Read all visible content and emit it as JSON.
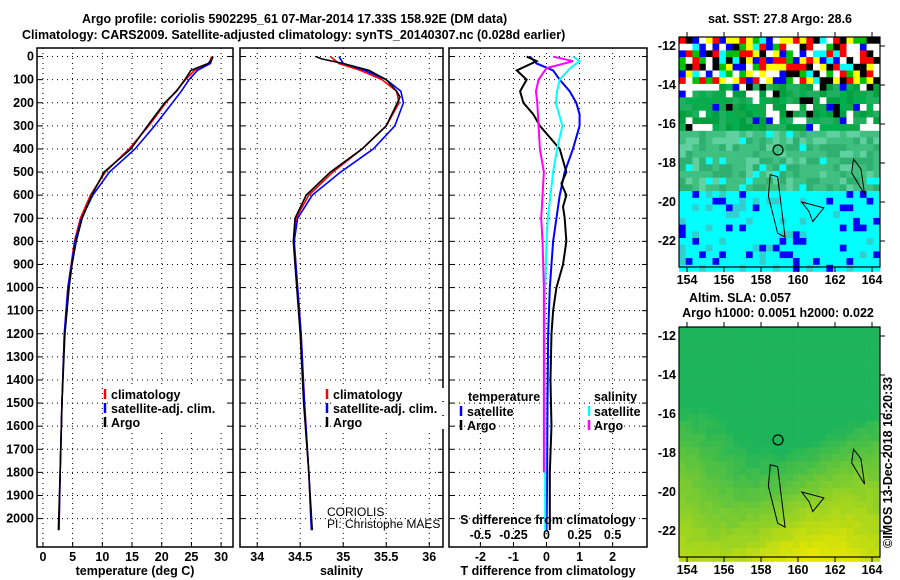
{
  "title": {
    "line1": "Argo profile: coriolis 5902295_61 07-Mar-2014 17.33S 158.92E (DM data)",
    "line2": "Climatology: CARS2009. Satellite-adjusted climatology: synTS_20140307.nc (0.028d earlier)"
  },
  "colors": {
    "climatology": "#ff0000",
    "satellite": "#0000ff",
    "argo": "#000000",
    "sal_satellite": "#00ffff",
    "sal_argo": "#ff00ff"
  },
  "chart_data": [
    {
      "type": "line",
      "id": "temperature",
      "xlabel": "temperature (deg C)",
      "ylabel": "depth",
      "xticks": [
        0,
        5,
        10,
        15,
        20,
        25,
        30
      ],
      "yticks": [
        0,
        100,
        200,
        300,
        400,
        500,
        600,
        700,
        800,
        900,
        1000,
        1100,
        1200,
        1300,
        1400,
        1500,
        1600,
        1700,
        1800,
        1900,
        2000
      ],
      "xlim": [
        -1,
        32
      ],
      "ylim": [
        2123,
        -37
      ],
      "grid": true,
      "legend": {
        "placement": "lower-center",
        "entries": [
          "climatology",
          "satellite-adj. clim.",
          "Argo"
        ]
      },
      "series": [
        {
          "name": "climatology",
          "color": "#ff0000",
          "depth": [
            0,
            30,
            60,
            100,
            150,
            200,
            300,
            400,
            500,
            600,
            700,
            800,
            1000,
            1200,
            1500,
            1800,
            2050
          ],
          "values": [
            28.4,
            28.0,
            25.5,
            24.0,
            22.4,
            20.7,
            17.8,
            14.5,
            10.5,
            8.0,
            6.3,
            5.3,
            4.2,
            3.6,
            3.2,
            2.9,
            2.7
          ]
        },
        {
          "name": "satellite-adj. clim.",
          "color": "#0000ff",
          "depth": [
            0,
            30,
            60,
            100,
            150,
            200,
            300,
            400,
            500,
            600,
            700,
            800,
            1000,
            1200,
            1500,
            1800,
            2050
          ],
          "values": [
            28.6,
            28.2,
            26.0,
            24.6,
            23.3,
            21.8,
            18.8,
            15.5,
            11.2,
            8.4,
            6.5,
            5.4,
            4.2,
            3.6,
            3.2,
            2.9,
            2.7
          ]
        },
        {
          "name": "Argo",
          "color": "#000000",
          "depth": [
            0,
            10,
            30,
            60,
            100,
            150,
            200,
            300,
            400,
            500,
            600,
            700,
            800,
            900,
            1000,
            1200,
            1500,
            1800,
            2050
          ],
          "values": [
            28.6,
            28.5,
            27.8,
            24.9,
            23.9,
            22.5,
            20.5,
            17.6,
            14.8,
            10.3,
            8.2,
            6.6,
            5.6,
            4.9,
            4.4,
            3.7,
            3.2,
            2.9,
            2.6
          ]
        }
      ]
    },
    {
      "type": "line",
      "id": "salinity",
      "xlabel": "salinity",
      "xticks": [
        34,
        34.5,
        35,
        35.5,
        36
      ],
      "xlim": [
        33.8,
        36.16
      ],
      "ylim": [
        2123,
        -37
      ],
      "grid": true,
      "legend": {
        "placement": "lower-center",
        "entries": [
          "climatology",
          "satellite-adj. clim.",
          "Argo"
        ]
      },
      "annotation": [
        "CORIOLIS",
        "PI: Christophe MAES"
      ],
      "series": [
        {
          "name": "climatology",
          "color": "#ff0000",
          "depth": [
            0,
            30,
            60,
            100,
            150,
            200,
            300,
            400,
            500,
            600,
            700,
            800,
            1000,
            1200,
            1500,
            1800,
            2050
          ],
          "values": [
            34.85,
            34.95,
            35.2,
            35.45,
            35.62,
            35.65,
            35.5,
            35.22,
            34.88,
            34.6,
            34.45,
            34.43,
            34.47,
            34.51,
            34.55,
            34.6,
            34.63
          ]
        },
        {
          "name": "satellite-adj. clim.",
          "color": "#0000ff",
          "depth": [
            0,
            30,
            60,
            100,
            150,
            200,
            300,
            400,
            500,
            600,
            700,
            800,
            1000,
            1200,
            1500,
            1800,
            2050
          ],
          "values": [
            34.95,
            35.0,
            35.25,
            35.5,
            35.67,
            35.7,
            35.6,
            35.35,
            34.97,
            34.64,
            34.47,
            34.43,
            34.47,
            34.51,
            34.55,
            34.6,
            34.63
          ]
        },
        {
          "name": "Argo",
          "color": "#000000",
          "depth": [
            0,
            10,
            30,
            60,
            100,
            150,
            175,
            200,
            300,
            400,
            500,
            600,
            700,
            800,
            1000,
            1200,
            1500,
            1800,
            2050
          ],
          "values": [
            34.68,
            34.75,
            35.0,
            35.3,
            35.5,
            35.62,
            35.66,
            35.63,
            35.5,
            35.22,
            34.85,
            34.57,
            34.44,
            34.42,
            34.46,
            34.5,
            34.54,
            34.6,
            34.64
          ]
        }
      ]
    },
    {
      "type": "line",
      "id": "difference",
      "xlabel": "T difference from climatology",
      "xlabel2": "S difference from climatology",
      "xticks": [
        -2,
        -1,
        0,
        1,
        2
      ],
      "xticks2": [
        "-0.5",
        "-0.25",
        "0",
        "0.25",
        "0.5"
      ],
      "xticks2_values": [
        -0.5,
        -0.25,
        0,
        0.25,
        0.5
      ],
      "xlim": [
        -2.95,
        3.04
      ],
      "ylim": [
        2123,
        -37
      ],
      "s_scale": 4,
      "grid": true,
      "legend": {
        "placement": "lower-center",
        "temperature_title": "temperature",
        "salinity_title": "salinity",
        "entries": [
          "satellite",
          "Argo"
        ]
      },
      "series": [
        {
          "name": "T satellite",
          "color": "#0000ff",
          "kind": "T",
          "depth": [
            0,
            30,
            60,
            100,
            150,
            200,
            250,
            300,
            400,
            500,
            600,
            700,
            800,
            900,
            1000,
            1200,
            1500,
            1800,
            2050
          ],
          "values": [
            -0.5,
            -0.3,
            0.2,
            0.4,
            0.7,
            0.9,
            1.0,
            1.0,
            0.8,
            0.55,
            0.4,
            0.3,
            0.2,
            0.15,
            0.1,
            0.05,
            0.03,
            0.02,
            0.0
          ]
        },
        {
          "name": "T Argo",
          "color": "#000000",
          "kind": "T",
          "depth": [
            0,
            20,
            60,
            100,
            150,
            200,
            250,
            300,
            350,
            400,
            450,
            500,
            550,
            600,
            650,
            700,
            800,
            900,
            1000,
            1100,
            1200,
            1400,
            1600,
            1800,
            2050
          ],
          "values": [
            -0.6,
            -0.3,
            -0.9,
            -0.6,
            -0.8,
            -0.7,
            -0.4,
            -0.2,
            0.1,
            0.4,
            0.5,
            0.6,
            0.45,
            0.6,
            0.5,
            0.55,
            0.6,
            0.5,
            0.3,
            0.2,
            0.15,
            0.12,
            0.15,
            0.1,
            0.1
          ]
        },
        {
          "name": "S satellite",
          "color": "#00ffff",
          "kind": "S",
          "depth": [
            0,
            20,
            50,
            100,
            150,
            200,
            300,
            400,
            500,
            600,
            700,
            800,
            1000,
            1500,
            2050
          ],
          "values": [
            0.2,
            0.25,
            0.18,
            0.1,
            0.08,
            0.07,
            0.12,
            0.08,
            0.05,
            0.03,
            0.01,
            0.0,
            -0.01,
            -0.01,
            -0.01
          ]
        },
        {
          "name": "S Argo",
          "color": "#ff00ff",
          "kind": "S",
          "depth": [
            0,
            20,
            50,
            100,
            150,
            200,
            300,
            400,
            500,
            600,
            700,
            800,
            1000,
            1400,
            1800
          ],
          "values": [
            0.05,
            0.2,
            0.0,
            -0.06,
            -0.08,
            -0.07,
            -0.06,
            -0.05,
            -0.02,
            -0.03,
            -0.04,
            -0.03,
            -0.02,
            -0.02,
            -0.02
          ]
        }
      ]
    }
  ],
  "maps": [
    {
      "id": "sst",
      "title1": "sat. SST: 27.8 Argo: 28.6",
      "xticks": [
        "154",
        "156",
        "158",
        "160",
        "162",
        "164"
      ],
      "yticks": [
        "-12",
        "-14",
        "-16",
        "-18",
        "-20",
        "-22"
      ]
    },
    {
      "id": "sla",
      "title1": "Altim. SLA: 0.057",
      "title2": "Argo h1000: 0.0051 h2000: 0.022",
      "xticks": [
        "154",
        "156",
        "158",
        "160",
        "162",
        "164"
      ],
      "yticks": [
        "-12",
        "-14",
        "-16",
        "-18",
        "-20",
        "-22"
      ]
    }
  ],
  "argo_position": {
    "lat": -17.33,
    "lon": 158.92
  },
  "credit": "©IMOS 13-Dec-2018 16:20:33"
}
